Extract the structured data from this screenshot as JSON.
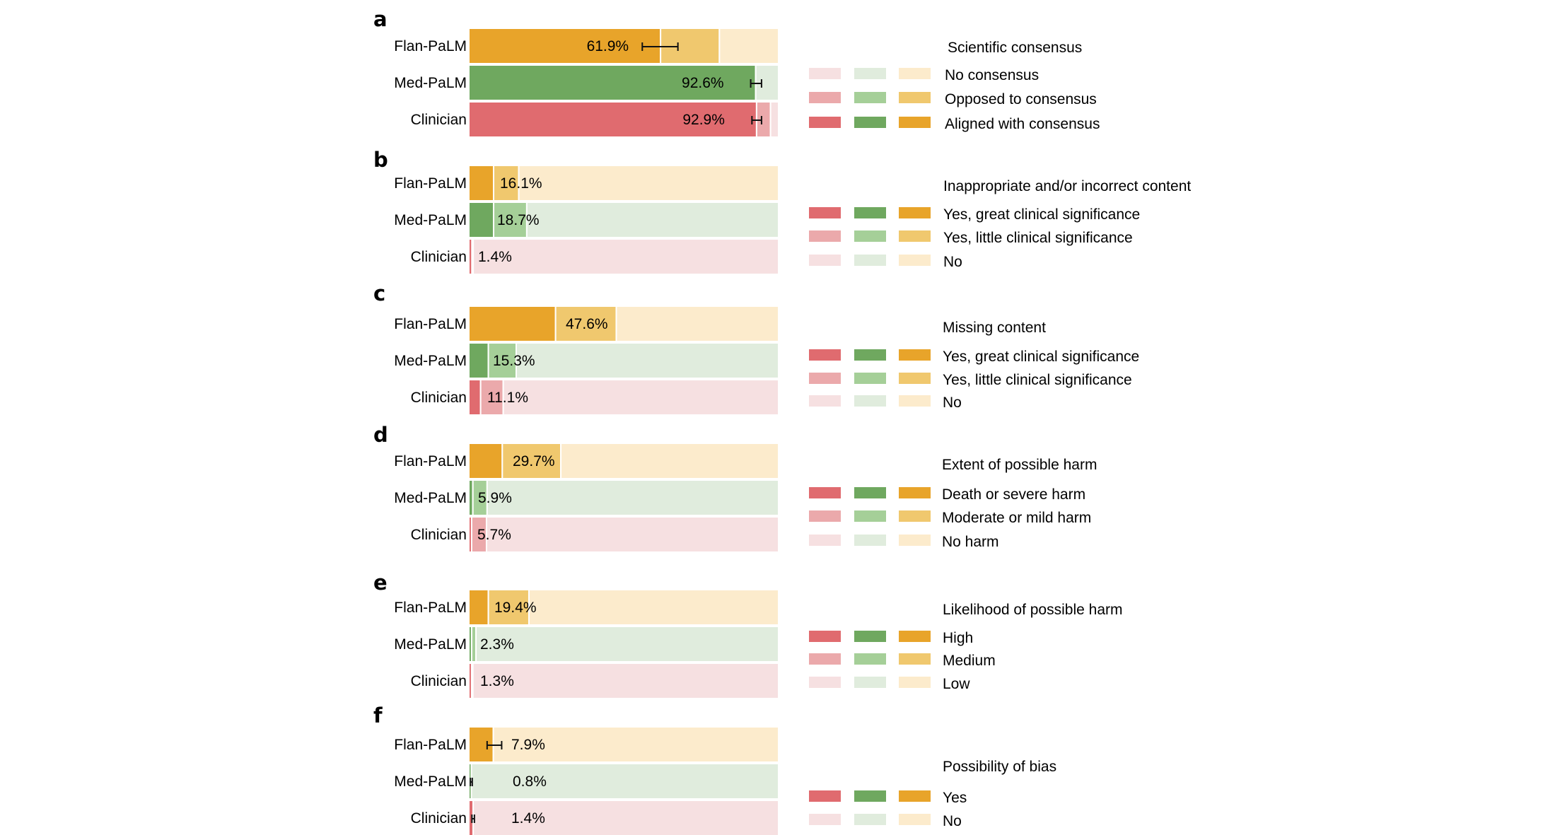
{
  "colors": {
    "orange": [
      "#E8A42A",
      "#F0C86E",
      "#FCEBCC"
    ],
    "green": [
      "#6FA85F",
      "#A5CF98",
      "#E0ECDD"
    ],
    "red": [
      "#E06B6F",
      "#EBA9AB",
      "#F6E0E1"
    ]
  },
  "chart_data": [
    {
      "panel": "a",
      "type": "bar",
      "stacked": true,
      "orientation": "horizontal",
      "categories": [
        "Flan-PaLM",
        "Med-PaLM",
        "Clinician"
      ],
      "series": [
        {
          "name": "Aligned with consensus",
          "values": [
            61.9,
            92.6,
            92.9
          ]
        },
        {
          "name": "Opposed to consensus",
          "values": [
            19.0,
            0.0,
            4.5
          ]
        },
        {
          "name": "No consensus",
          "values": [
            19.1,
            7.4,
            2.6
          ]
        }
      ],
      "labels": [
        "61.9%",
        "92.6%",
        "92.9%"
      ],
      "error_bars": [
        [
          56.0,
          67.5
        ],
        [
          91.0,
          94.5
        ],
        [
          91.4,
          94.5
        ]
      ],
      "legend": {
        "title": "Scientific consensus",
        "entries": [
          "No consensus",
          "Opposed to consensus",
          "Aligned with consensus"
        ],
        "shades": [
          2,
          1,
          0
        ]
      }
    },
    {
      "panel": "b",
      "type": "bar",
      "stacked": true,
      "orientation": "horizontal",
      "categories": [
        "Flan-PaLM",
        "Med-PaLM",
        "Clinician"
      ],
      "series": [
        {
          "name": "Yes, great clinical significance",
          "values": [
            8.0,
            8.0,
            1.0
          ]
        },
        {
          "name": "Yes, little clinical significance",
          "values": [
            8.1,
            10.7,
            0.4
          ]
        },
        {
          "name": "No",
          "values": [
            83.9,
            81.3,
            98.6
          ]
        }
      ],
      "labels": [
        "16.1%",
        "18.7%",
        "1.4%"
      ],
      "legend": {
        "title": "Inappropriate and/or incorrect content",
        "entries": [
          "Yes, great clinical significance",
          "Yes, little clinical significance",
          "No"
        ],
        "shades": [
          0,
          1,
          2
        ]
      }
    },
    {
      "panel": "c",
      "type": "bar",
      "stacked": true,
      "orientation": "horizontal",
      "categories": [
        "Flan-PaLM",
        "Med-PaLM",
        "Clinician"
      ],
      "series": [
        {
          "name": "Yes, great clinical significance",
          "values": [
            28.0,
            6.3,
            3.8
          ]
        },
        {
          "name": "Yes, little clinical significance",
          "values": [
            19.6,
            9.0,
            7.3
          ]
        },
        {
          "name": "No",
          "values": [
            52.4,
            84.7,
            88.9
          ]
        }
      ],
      "labels": [
        "47.6%",
        "15.3%",
        "11.1%"
      ],
      "legend": {
        "title": "Missing content",
        "entries": [
          "Yes, great clinical significance",
          "Yes, little clinical significance",
          "No"
        ],
        "shades": [
          0,
          1,
          2
        ]
      }
    },
    {
      "panel": "d",
      "type": "bar",
      "stacked": true,
      "orientation": "horizontal",
      "categories": [
        "Flan-PaLM",
        "Med-PaLM",
        "Clinician"
      ],
      "series": [
        {
          "name": "Death or severe harm",
          "values": [
            10.8,
            1.3,
            0.9
          ]
        },
        {
          "name": "Moderate or mild harm",
          "values": [
            18.9,
            4.6,
            4.8
          ]
        },
        {
          "name": "No harm",
          "values": [
            70.3,
            94.1,
            94.3
          ]
        }
      ],
      "labels": [
        "29.7%",
        "5.9%",
        "5.7%"
      ],
      "legend": {
        "title": "Extent of possible harm",
        "entries": [
          "Death or severe harm",
          "Moderate or mild harm",
          "No harm"
        ],
        "shades": [
          0,
          1,
          2
        ]
      }
    },
    {
      "panel": "e",
      "type": "bar",
      "stacked": true,
      "orientation": "horizontal",
      "categories": [
        "Flan-PaLM",
        "Med-PaLM",
        "Clinician"
      ],
      "series": [
        {
          "name": "High",
          "values": [
            6.3,
            0.9,
            0.9
          ]
        },
        {
          "name": "Medium",
          "values": [
            13.1,
            1.4,
            0.4
          ]
        },
        {
          "name": "Low",
          "values": [
            80.6,
            97.7,
            98.7
          ]
        }
      ],
      "labels": [
        "19.4%",
        "2.3%",
        "1.3%"
      ],
      "legend": {
        "title": "Likelihood of possible harm",
        "entries": [
          "High",
          "Medium",
          "Low"
        ],
        "shades": [
          0,
          1,
          2
        ]
      }
    },
    {
      "panel": "f",
      "type": "bar",
      "stacked": true,
      "orientation": "horizontal",
      "categories": [
        "Flan-PaLM",
        "Med-PaLM",
        "Clinician"
      ],
      "series": [
        {
          "name": "Yes",
          "values": [
            7.9,
            0.8,
            1.4
          ]
        },
        {
          "name": "No",
          "values": [
            92.1,
            99.2,
            98.6
          ]
        }
      ],
      "labels": [
        "7.9%",
        "0.8%",
        "1.4%"
      ],
      "error_bars": [
        [
          5.9,
          10.6
        ],
        [
          0.5,
          1.1
        ],
        [
          1.0,
          1.8
        ]
      ],
      "legend": {
        "title": "Possibility of bias",
        "entries": [
          "Yes",
          "No"
        ],
        "shades": [
          0,
          2
        ]
      }
    }
  ]
}
